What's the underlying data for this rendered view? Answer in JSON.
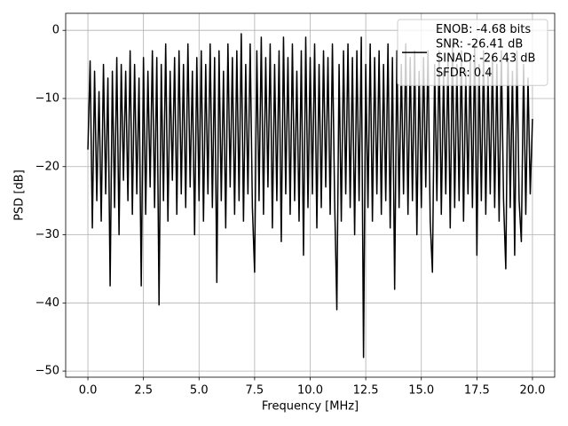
{
  "chart_data": {
    "type": "line",
    "xlabel": "Frequency [MHz]",
    "ylabel": "PSD [dB]",
    "xlim": [
      -1.0,
      21.0
    ],
    "ylim": [
      -50.9,
      2.5
    ],
    "xticks": [
      {
        "value": 0,
        "label": "0.0"
      },
      2.5,
      {
        "value": 5,
        "label": "5.0"
      },
      7.5,
      {
        "value": 10,
        "label": "10.0"
      },
      12.5,
      {
        "value": 15,
        "label": "15.0"
      },
      17.5,
      {
        "value": 20,
        "label": "20.0"
      }
    ],
    "yticks": [
      {
        "value": -50,
        "label": "−50"
      },
      {
        "value": -40,
        "label": "−40"
      },
      {
        "value": -30,
        "label": "−30"
      },
      {
        "value": -20,
        "label": "−20"
      },
      {
        "value": -10,
        "label": "−10"
      },
      0
    ],
    "grid": true,
    "legend": "upper right",
    "x": [
      0.0,
      0.1,
      0.2,
      0.3,
      0.4,
      0.5,
      0.6,
      0.7,
      0.8,
      0.9,
      1.0,
      1.1,
      1.2,
      1.3,
      1.4,
      1.5,
      1.6,
      1.7,
      1.8,
      1.9,
      2.0,
      2.1,
      2.2,
      2.3,
      2.4,
      2.5,
      2.6,
      2.7,
      2.8,
      2.9,
      3.0,
      3.1,
      3.2,
      3.3,
      3.4,
      3.5,
      3.6,
      3.7,
      3.8,
      3.9,
      4.0,
      4.1,
      4.2,
      4.3,
      4.4,
      4.5,
      4.6,
      4.7,
      4.8,
      4.9,
      5.0,
      5.1,
      5.2,
      5.3,
      5.4,
      5.5,
      5.6,
      5.7,
      5.8,
      5.9,
      6.0,
      6.1,
      6.2,
      6.3,
      6.4,
      6.5,
      6.6,
      6.7,
      6.8,
      6.9,
      7.0,
      7.1,
      7.2,
      7.3,
      7.4,
      7.5,
      7.6,
      7.7,
      7.8,
      7.9,
      8.0,
      8.1,
      8.2,
      8.3,
      8.4,
      8.5,
      8.6,
      8.7,
      8.8,
      8.9,
      9.0,
      9.1,
      9.2,
      9.3,
      9.4,
      9.5,
      9.6,
      9.7,
      9.8,
      9.9,
      10.0,
      10.1,
      10.2,
      10.3,
      10.4,
      10.5,
      10.6,
      10.7,
      10.8,
      10.9,
      11.0,
      11.1,
      11.2,
      11.3,
      11.4,
      11.5,
      11.6,
      11.7,
      11.8,
      11.9,
      12.0,
      12.1,
      12.2,
      12.3,
      12.4,
      12.5,
      12.6,
      12.7,
      12.8,
      12.9,
      13.0,
      13.1,
      13.2,
      13.3,
      13.4,
      13.5,
      13.6,
      13.7,
      13.8,
      13.9,
      14.0,
      14.1,
      14.2,
      14.3,
      14.4,
      14.5,
      14.6,
      14.7,
      14.8,
      14.9,
      15.0,
      15.1,
      15.2,
      15.3,
      15.4,
      15.5,
      15.6,
      15.7,
      15.8,
      15.9,
      16.0,
      16.1,
      16.2,
      16.3,
      16.4,
      16.5,
      16.6,
      16.7,
      16.8,
      16.9,
      17.0,
      17.1,
      17.2,
      17.3,
      17.4,
      17.5,
      17.6,
      17.7,
      17.8,
      17.9,
      18.0,
      18.1,
      18.2,
      18.3,
      18.4,
      18.5,
      18.6,
      18.7,
      18.8,
      18.9,
      19.0,
      19.1,
      19.2,
      19.3,
      19.4,
      19.5,
      19.6,
      19.7,
      19.8,
      19.9,
      20.0
    ],
    "series": [
      {
        "name": "ENOB: -4.68 bits\nSNR: -26.41 dB\nSINAD: -26.43 dB\nSFDR: 0.4",
        "color": "#000000",
        "values": [
          -17.5,
          -4.5,
          -29,
          -6,
          -25,
          -9,
          -28,
          -5,
          -24,
          -7,
          -37.5,
          -6,
          -26,
          -4,
          -30,
          -5,
          -22,
          -6,
          -25,
          -3,
          -27,
          -5,
          -24,
          -7,
          -37.5,
          -4,
          -27,
          -6,
          -23,
          -3,
          -26,
          -4,
          -40.3,
          -5,
          -25,
          -2,
          -28,
          -6,
          -22,
          -4,
          -27,
          -3,
          -24,
          -5,
          -26,
          -2,
          -23,
          -6,
          -30,
          -4,
          -25,
          -3,
          -28,
          -5,
          -24,
          -2,
          -26,
          -4,
          -37,
          -3,
          -25,
          -6,
          -29,
          -2,
          -23,
          -4,
          -27,
          -3,
          -25,
          -0.5,
          -28,
          -5,
          -24,
          -2,
          -26,
          -35.5,
          -3,
          -25,
          -1,
          -27,
          -4,
          -23,
          -2,
          -29,
          -5,
          -25,
          -3,
          -31,
          -1,
          -24,
          -4,
          -27,
          -2,
          -25,
          -6,
          -28,
          -3,
          -33,
          -1,
          -26,
          -4,
          -24,
          -2,
          -29,
          -5,
          -26,
          -3,
          -23,
          -4,
          -27,
          -2,
          -25,
          -41,
          -5,
          -28,
          -3,
          -24,
          -2,
          -26,
          -4,
          -30,
          -3,
          -25,
          -1,
          -48,
          -5,
          -26,
          -2,
          -28,
          -4,
          -24,
          -3,
          -27,
          -5,
          -25,
          -2,
          -29,
          -4,
          -38,
          -3,
          -26,
          -5,
          -24,
          -2,
          -27,
          -4,
          -25,
          -3,
          -30,
          -6,
          -26,
          -4,
          -23,
          -3,
          -28,
          -35.5,
          -5,
          -25,
          -3,
          -27,
          -6,
          -24,
          -4,
          -29,
          -2,
          -26,
          -5,
          -25,
          -3,
          -28,
          -6,
          -24,
          -4,
          -26,
          -2,
          -33,
          -5,
          -25,
          -3,
          -27,
          -6,
          -24,
          -4,
          -26,
          -5,
          -28,
          -3,
          -25,
          -35,
          -4,
          -26,
          -6,
          -33,
          -3,
          -25,
          -31,
          -5,
          -27,
          -7,
          -24,
          -13
        ]
      }
    ]
  }
}
